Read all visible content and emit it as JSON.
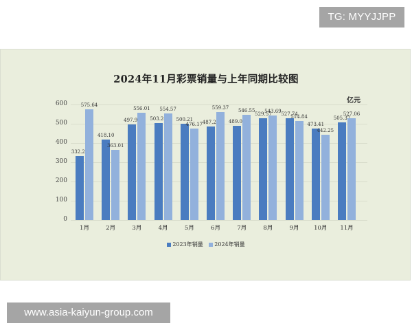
{
  "watermarks": {
    "top": "TG: MYYJJPP",
    "bottom": "www.asia-kaiyun-group.com"
  },
  "colors": {
    "series_2023": "#4a7cc0",
    "series_2024": "#92b1dc",
    "background": "#eaeedd"
  },
  "chart_data": {
    "type": "bar",
    "title": "2024年11月彩票销量与上年同期比较图",
    "unit": "亿元",
    "xlabel": "",
    "ylabel": "亿元",
    "ylim": [
      0,
      600
    ],
    "yticks": [
      0,
      100,
      200,
      300,
      400,
      500,
      600
    ],
    "grid": true,
    "legend_position": "bottom",
    "categories": [
      "1月",
      "2月",
      "3月",
      "4月",
      "5月",
      "6月",
      "7月",
      "8月",
      "9月",
      "10月",
      "11月"
    ],
    "series": [
      {
        "name": "2023年销量",
        "values": [
          332.23,
          418.1,
          497.92,
          503.26,
          500.21,
          487.28,
          489.06,
          529.57,
          527.74,
          473.41,
          505.37
        ],
        "labels": [
          "332.23",
          "418.10",
          "497.92",
          "503.26",
          "500.21",
          "487.28",
          "489.06",
          "529.57",
          "527.74",
          "473.41",
          "505.37"
        ]
      },
      {
        "name": "2024年销量",
        "values": [
          575.64,
          363.01,
          556.01,
          554.57,
          476.17,
          559.37,
          546.55,
          543.69,
          514.84,
          442.25,
          527.06
        ],
        "labels": [
          "575.64",
          "363.01",
          "556.01",
          "554.57",
          "476.17",
          "559.37",
          "546.55",
          "543.69",
          "514.84",
          "442.25",
          "527.06"
        ]
      }
    ]
  }
}
